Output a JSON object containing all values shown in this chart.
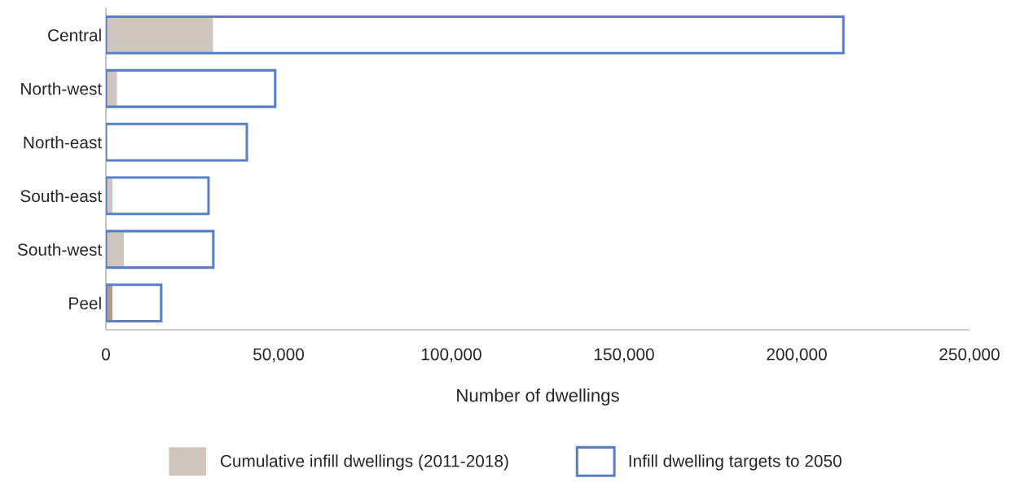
{
  "chart_data": {
    "type": "bar",
    "orientation": "horizontal",
    "xlabel": "Number of dwellings",
    "categories": [
      "Central",
      "North-west",
      "North-east",
      "South-east",
      "South-west",
      "Peel"
    ],
    "series": [
      {
        "name": "Cumulative infill dwellings (2011-2018)",
        "color": "#cfc7bd",
        "colors": [
          "#cfc7bd",
          "#cfc7bd",
          "#cfc7bd",
          "#cfc7bd",
          "#cfc7bd",
          "#aa9e8f"
        ],
        "values": [
          31000,
          3200,
          null,
          1900,
          5200,
          1900
        ]
      },
      {
        "name": "Infill dwelling targets to 2050",
        "color": "#5b7fc4",
        "values": [
          213500,
          49000,
          40800,
          29700,
          31100,
          16000
        ]
      }
    ],
    "xlim": [
      0,
      250000
    ],
    "xticks": [
      0,
      {
        "value": 50000,
        "label": "50,000"
      },
      {
        "value": 100000,
        "label": "100,000"
      },
      {
        "value": 150000,
        "label": "150,000"
      },
      {
        "value": 200000,
        "label": "200,000"
      },
      {
        "value": 250000,
        "label": "250,000"
      }
    ],
    "legend": "bottom"
  }
}
